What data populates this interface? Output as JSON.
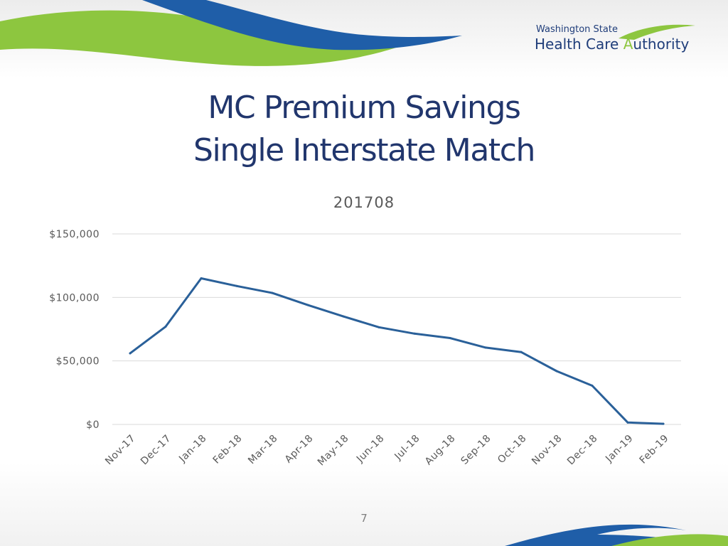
{
  "logo": {
    "line1": "Washington State",
    "line2_part1": "Health Care ",
    "line2_part2": "A",
    "line2_part3": "uthority",
    "colors": {
      "navy": "#1f3d7a",
      "green": "#8dc63f"
    }
  },
  "slide": {
    "title_line1": "MC Premium Savings",
    "title_line2": "Single Interstate Match",
    "page_number": "7"
  },
  "theme": {
    "line_color": "#2a6099",
    "grid_color": "#d9d9d9",
    "tick_color": "#595959"
  },
  "chart_data": {
    "type": "line",
    "title": "201708",
    "xlabel": "",
    "ylabel": "",
    "categories": [
      "Nov-17",
      "Dec-17",
      "Jan-18",
      "Feb-18",
      "Mar-18",
      "Apr-18",
      "May-18",
      "Jun-18",
      "Jul-18",
      "Aug-18",
      "Sep-18",
      "Oct-18",
      "Nov-18",
      "Dec-18",
      "Jan-19",
      "Feb-19"
    ],
    "values": [
      56000,
      77000,
      115000,
      109000,
      103500,
      94000,
      85000,
      76500,
      71500,
      68000,
      60500,
      57000,
      42000,
      30500,
      1500,
      500
    ],
    "ylim": [
      0,
      150000
    ],
    "yticks": [
      0,
      50000,
      100000,
      150000
    ],
    "ytick_labels": [
      "$0",
      "$50,000",
      "$100,000",
      "$150,000"
    ],
    "grid": true,
    "legend": "none"
  }
}
